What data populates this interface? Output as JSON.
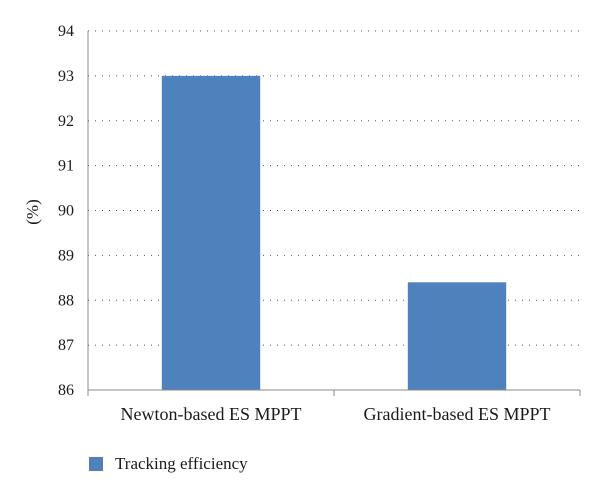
{
  "chart_data": {
    "type": "bar",
    "categories": [
      "Newton-based ES MPPT",
      "Gradient-based ES MPPT"
    ],
    "series": [
      {
        "name": "Tracking efficiency",
        "values": [
          93.0,
          88.4
        ],
        "color": "#4f81bd"
      }
    ],
    "ylabel": "(%)",
    "ylim": [
      86,
      94
    ],
    "yticks": [
      86,
      87,
      88,
      89,
      90,
      91,
      92,
      93,
      94
    ],
    "grid": true,
    "legend": "bottom-left"
  }
}
